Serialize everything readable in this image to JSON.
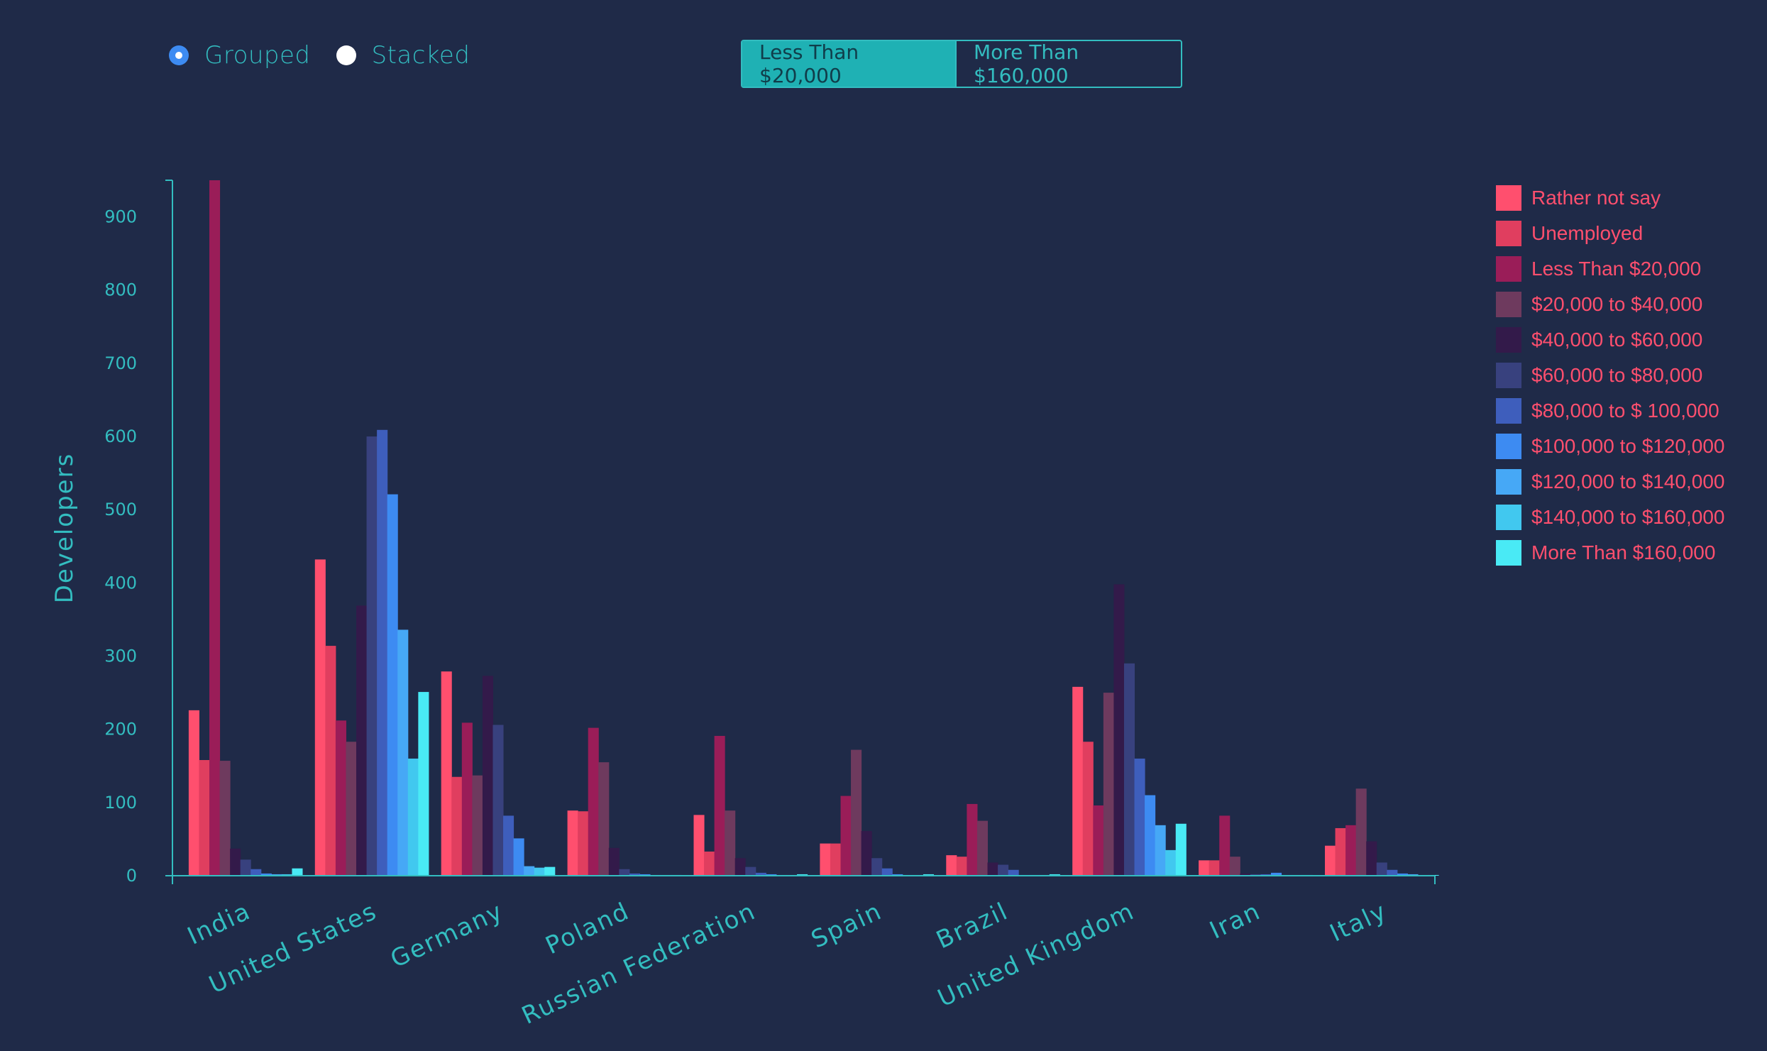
{
  "controls": {
    "grouped_label": "Grouped",
    "stacked_label": "Stacked",
    "toggle_left": "Less Than $20,000",
    "toggle_right": "More Than $160,000"
  },
  "colors": [
    "#ff4f6e",
    "#e03e5f",
    "#9a1d58",
    "#6e3a5e",
    "#331a4a",
    "#38417e",
    "#3e5ebc",
    "#3d8bf2",
    "#46a8f6",
    "#41c8ef",
    "#49eaf5"
  ],
  "chart_data": {
    "type": "bar",
    "ylabel": "Developers",
    "xlabel": "",
    "ylim": [
      0,
      950
    ],
    "yticks": [
      0,
      100,
      200,
      300,
      400,
      500,
      600,
      700,
      800,
      900
    ],
    "categories": [
      "India",
      "United States",
      "Germany",
      "Poland",
      "Russian Federation",
      "Spain",
      "Brazil",
      "United Kingdom",
      "Iran",
      "Italy"
    ],
    "series": [
      {
        "name": "Rather not say",
        "values": [
          226,
          432,
          279,
          89,
          83,
          44,
          28,
          258,
          21,
          41
        ]
      },
      {
        "name": "Unemployed",
        "values": [
          158,
          314,
          135,
          88,
          33,
          44,
          26,
          183,
          21,
          65
        ]
      },
      {
        "name": "Less Than $20,000",
        "values": [
          950,
          212,
          209,
          202,
          191,
          109,
          98,
          96,
          82,
          69
        ]
      },
      {
        "name": "$20,000 to $40,000",
        "values": [
          157,
          183,
          137,
          155,
          89,
          172,
          75,
          250,
          26,
          119
        ]
      },
      {
        "name": "$40,000 to $60,000",
        "values": [
          37,
          369,
          273,
          38,
          24,
          61,
          18,
          398,
          3,
          47
        ]
      },
      {
        "name": "$60,000 to $80,000",
        "values": [
          22,
          600,
          206,
          9,
          12,
          24,
          15,
          290,
          2,
          18
        ]
      },
      {
        "name": "$80,000 to $ 100,000",
        "values": [
          9,
          609,
          82,
          3,
          4,
          10,
          8,
          160,
          2,
          8
        ]
      },
      {
        "name": "$100,000 to $120,000",
        "values": [
          3,
          521,
          51,
          2,
          2,
          2,
          1,
          110,
          4,
          3
        ]
      },
      {
        "name": "$120,000 to $140,000",
        "values": [
          2,
          336,
          13,
          1,
          1,
          1,
          1,
          69,
          1,
          2
        ]
      },
      {
        "name": "$140,000 to $160,000",
        "values": [
          2,
          160,
          11,
          1,
          1,
          1,
          1,
          35,
          1,
          1
        ]
      },
      {
        "name": "More Than $160,000",
        "values": [
          10,
          251,
          12,
          1,
          2,
          2,
          2,
          71,
          1,
          1
        ]
      }
    ]
  }
}
